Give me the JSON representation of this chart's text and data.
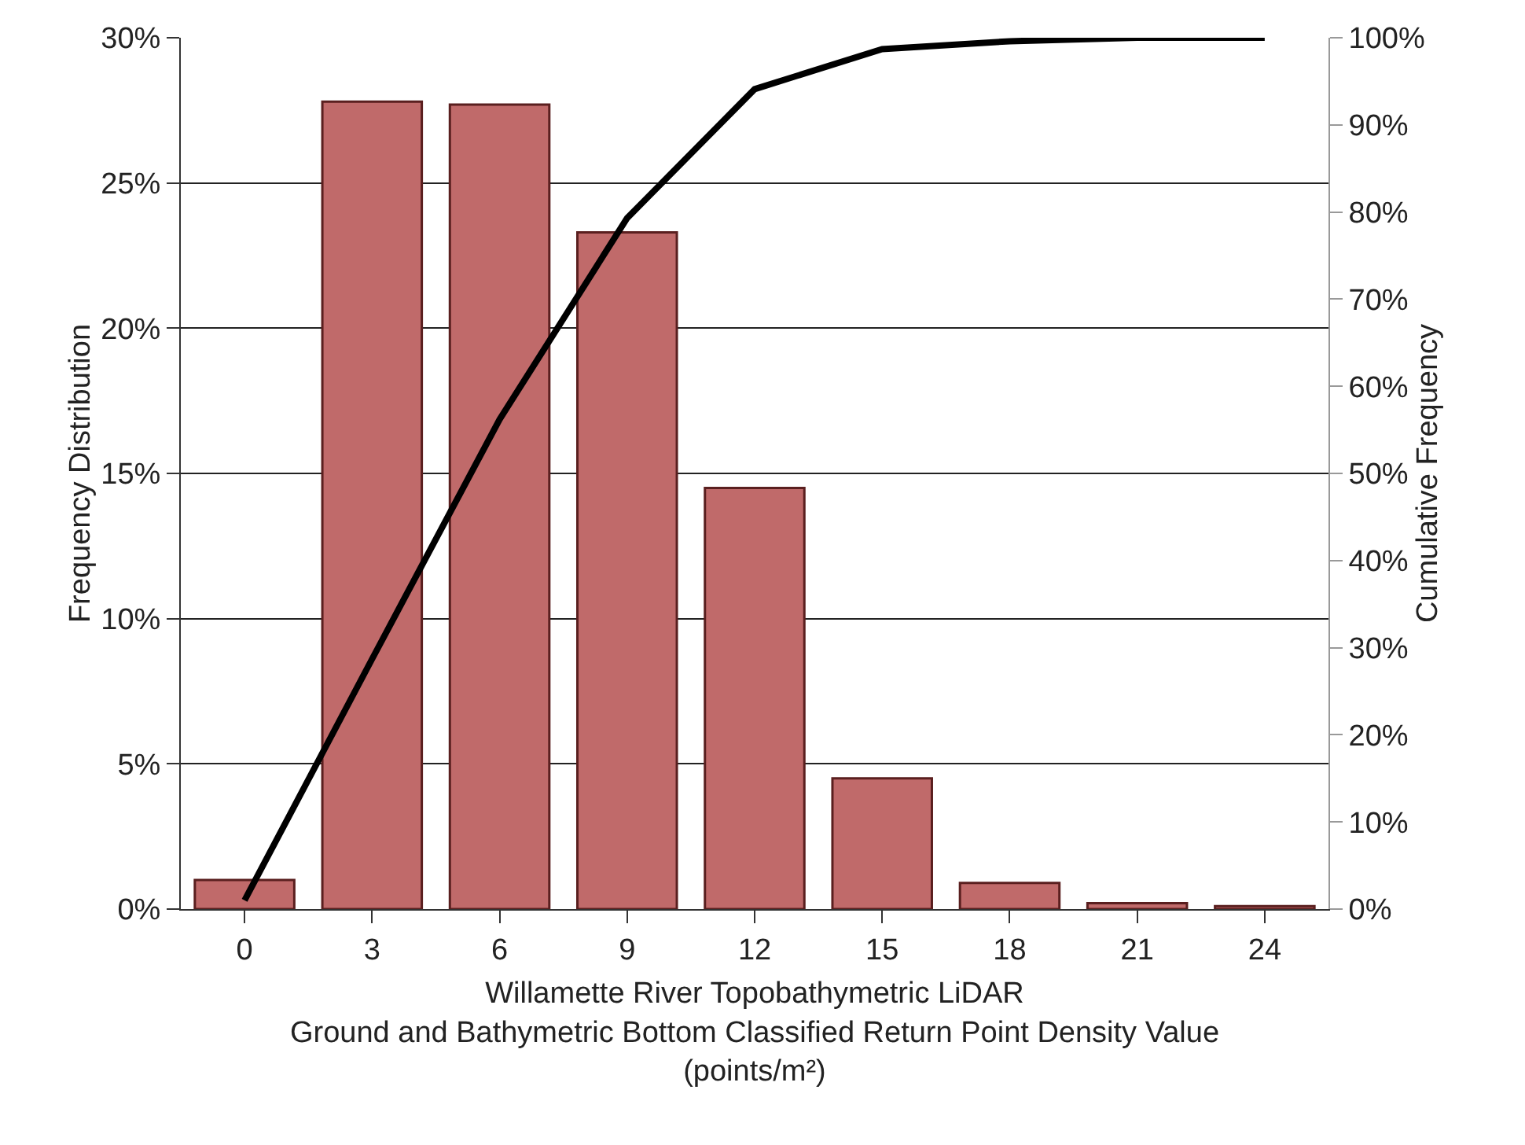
{
  "chart_data": {
    "type": "bar",
    "categories": [
      "0",
      "3",
      "6",
      "9",
      "12",
      "15",
      "18",
      "21",
      "24"
    ],
    "series": [
      {
        "color": "#c06a6a",
        "values": [
          1.0,
          27.8,
          27.7,
          23.3,
          14.5,
          4.5,
          0.9,
          0.2,
          0.1
        ]
      },
      {
        "type": "line",
        "axis": "y2",
        "color": "#000000",
        "values": [
          1.0,
          28.7,
          56.2,
          79.3,
          94.1,
          98.7,
          99.6,
          100,
          100
        ]
      }
    ],
    "xlabel": "Willamette River Topobathymetric LiDAR\nGround and Bathymetric Bottom Classified Return Point Density Value\n(points/m²)",
    "ylabel": "Frequency Distribution",
    "y2label": "Cumulative Frequency",
    "ylim": [
      0,
      30
    ],
    "yticks": [
      {
        "value": 0,
        "label": "0%"
      },
      {
        "value": 5,
        "label": "5%"
      },
      {
        "value": 10,
        "label": "10%"
      },
      {
        "value": 15,
        "label": "15%"
      },
      {
        "value": 20,
        "label": "20%"
      },
      {
        "value": 25,
        "label": "25%"
      },
      {
        "value": 30,
        "label": "30%"
      }
    ],
    "y2lim": [
      0,
      100
    ],
    "y2ticks": [
      {
        "value": 0,
        "label": "0%"
      },
      {
        "value": 10,
        "label": "10%"
      },
      {
        "value": 20,
        "label": "20%"
      },
      {
        "value": 30,
        "label": "30%"
      },
      {
        "value": 40,
        "label": "40%"
      },
      {
        "value": 50,
        "label": "50%"
      },
      {
        "value": 60,
        "label": "60%"
      },
      {
        "value": 70,
        "label": "70%"
      },
      {
        "value": 80,
        "label": "80%"
      },
      {
        "value": 90,
        "label": "90%"
      },
      {
        "value": 100,
        "label": "100%"
      }
    ],
    "grid": "y",
    "legend": false,
    "marker": "none",
    "line_style": "solid"
  }
}
